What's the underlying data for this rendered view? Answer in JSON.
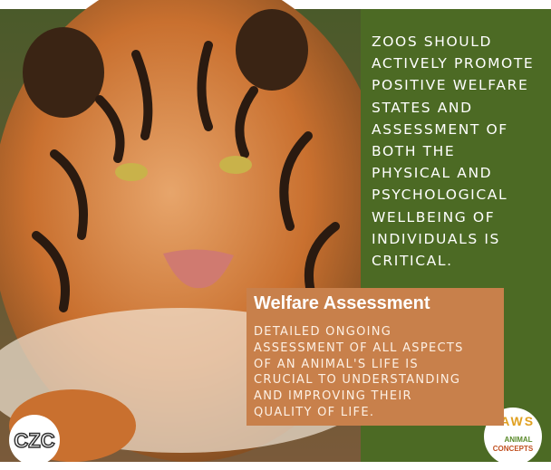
{
  "statement": {
    "lines": [
      "ZOOS SHOULD",
      "ACTIVELY PROMOTE",
      "POSITIVE WELFARE",
      "STATES AND",
      "ASSESSMENT OF",
      "BOTH THE",
      "PHYSICAL AND",
      "PSYCHOLOGICAL",
      "WELLBEING OF",
      "INDIVIDUALS IS",
      "CRITICAL."
    ]
  },
  "callout": {
    "title": "Welfare Assessment",
    "lines": [
      "DETAILED ONGOING",
      "ASSESSMENT OF ALL ASPECTS",
      "OF AN ANIMAL'S LIFE IS",
      "CRUCIAL TO UNDERSTANDING",
      "AND IMPROVING THEIR",
      "QUALITY OF LIFE."
    ]
  },
  "logos": {
    "left": "CZC",
    "right": {
      "name": "PAWS",
      "line1": "ANIMAL",
      "line2": "CONCEPTS"
    }
  }
}
